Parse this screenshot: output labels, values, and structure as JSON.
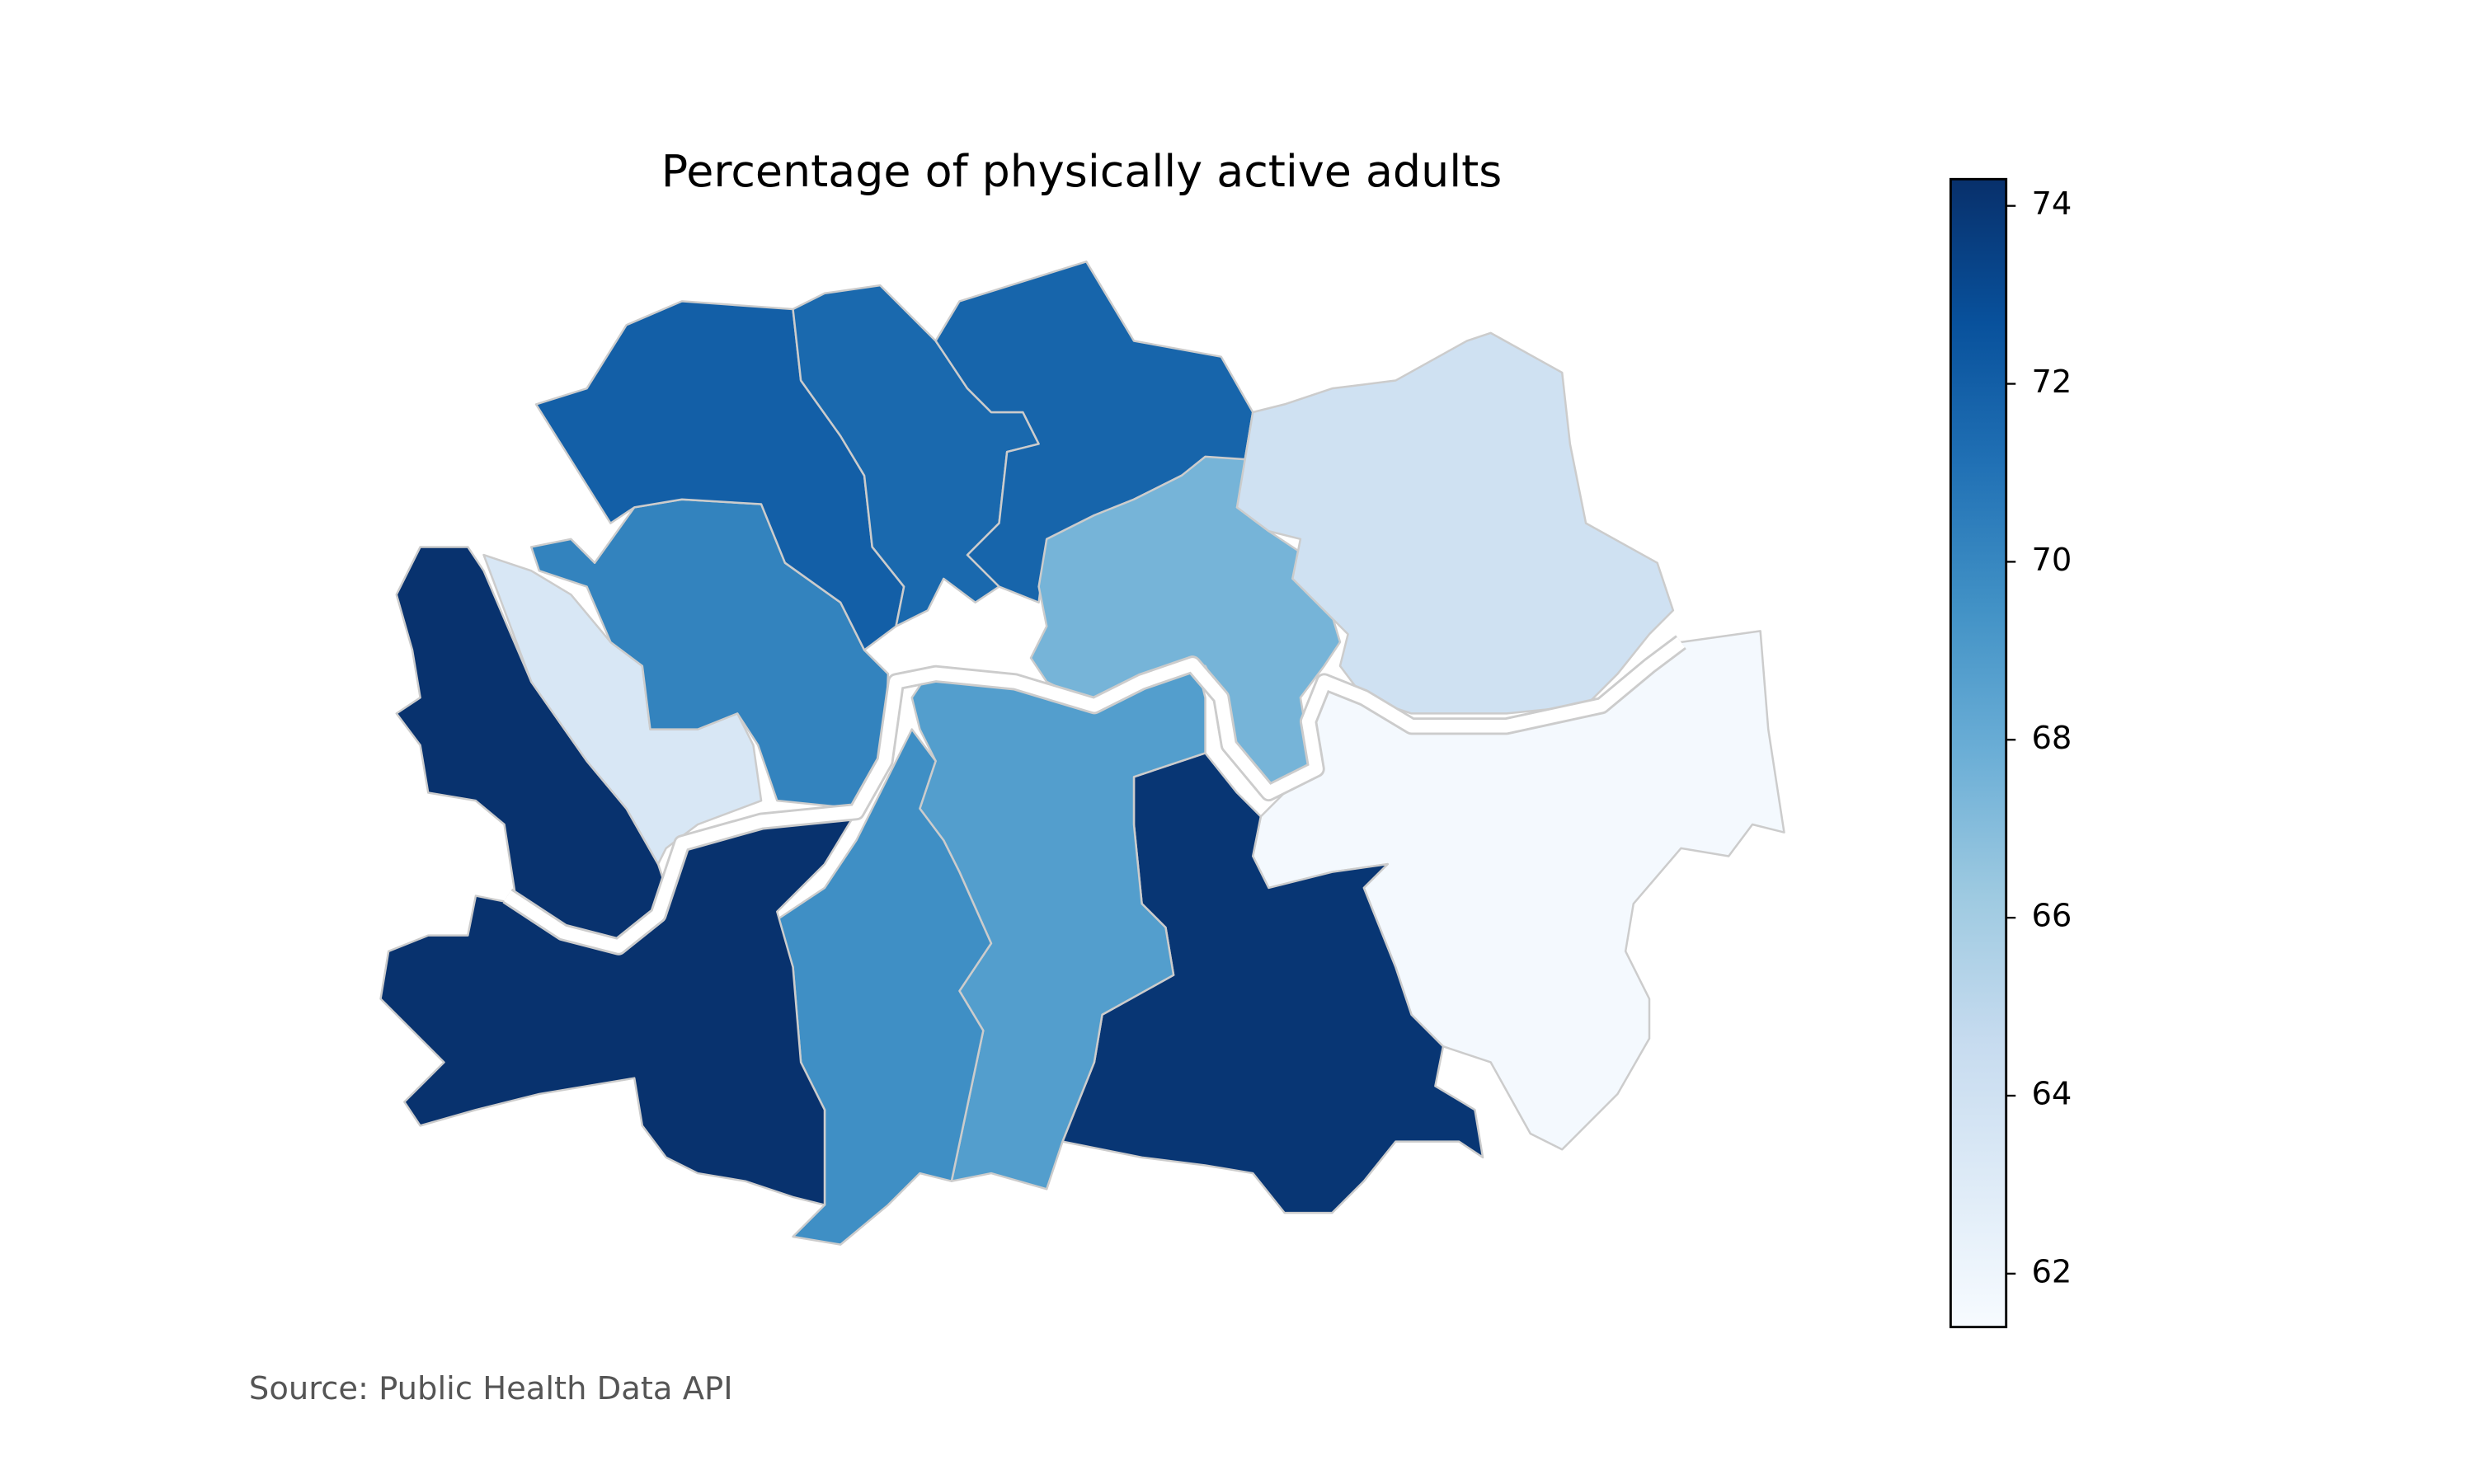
{
  "chart_data": {
    "type": "choropleth",
    "title": "Percentage of physically active adults",
    "source": "Source: Public Health Data API",
    "values": [
      74.2,
      63.4,
      70.2,
      72.0,
      71.5,
      71.7,
      67.5,
      64.0,
      61.6,
      74.0,
      68.8,
      69.6,
      74.2
    ],
    "colormap": [
      "#f7fbff",
      "#deebf7",
      "#c6dbef",
      "#9ecae1",
      "#6baed6",
      "#4292c6",
      "#2171b5",
      "#08519c",
      "#08306b"
    ],
    "clim": [
      61.4,
      74.3
    ],
    "cticks": [
      62,
      64,
      66,
      68,
      70,
      72,
      74
    ]
  }
}
